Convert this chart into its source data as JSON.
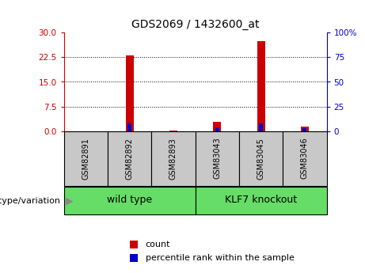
{
  "title": "GDS2069 / 1432600_at",
  "samples": [
    "GSM82891",
    "GSM82892",
    "GSM82893",
    "GSM83043",
    "GSM83045",
    "GSM83046"
  ],
  "count_values": [
    0.0,
    23.0,
    0.1,
    2.7,
    27.5,
    1.3
  ],
  "percentile_values": [
    0.0,
    8.0,
    0.0,
    3.5,
    8.0,
    2.5
  ],
  "groups": [
    {
      "label": "wild type",
      "start": 0,
      "end": 3,
      "color": "#66DD66"
    },
    {
      "label": "KLF7 knockout",
      "start": 3,
      "end": 6,
      "color": "#66DD66"
    }
  ],
  "group_label_prefix": "genotype/variation",
  "ylim_left": [
    0,
    30
  ],
  "ylim_right": [
    0,
    100
  ],
  "yticks_left": [
    0,
    7.5,
    15,
    22.5,
    30
  ],
  "yticks_right": [
    0,
    25,
    50,
    75,
    100
  ],
  "ytick_labels_right": [
    "0",
    "25",
    "50",
    "75",
    "100%"
  ],
  "bar_width": 0.18,
  "count_color": "#CC0000",
  "percentile_color": "#0000CC",
  "grid_color": "black",
  "bg_color": "white",
  "plot_bg": "white",
  "tick_color_left": "#CC0000",
  "tick_color_right": "#0000CC",
  "legend_count": "count",
  "legend_pct": "percentile rank within the sample",
  "sample_box_color": "#C8C8C8",
  "fontsize_title": 10,
  "fontsize_ticks": 7.5,
  "fontsize_sample": 7,
  "fontsize_group": 9,
  "fontsize_legend": 8,
  "fontsize_genotype_label": 8
}
